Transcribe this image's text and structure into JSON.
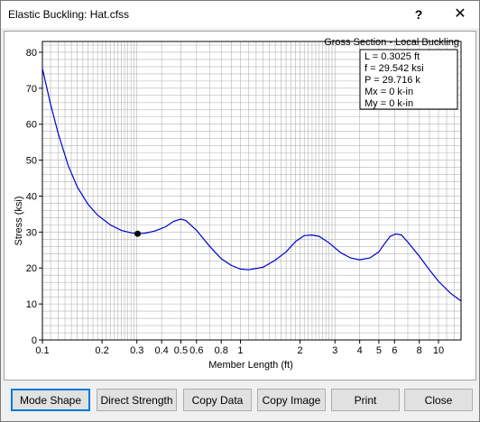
{
  "window": {
    "title": "Elastic Buckling: Hat.cfss",
    "help_label": "?",
    "close_label": "✕"
  },
  "plot": {
    "subtitle": "Gross Section - Local Buckling",
    "info_lines": [
      "L = 0.3025 ft",
      "f = 29.542 ksi",
      "P = 29.716 k",
      "Mx = 0 k-in",
      "My = 0 k-in"
    ]
  },
  "buttons": {
    "mode_shape": "Mode Shape",
    "direct_strength": "Direct Strength",
    "copy_data": "Copy Data",
    "copy_image": "Copy Image",
    "print": "Print",
    "close": "Close"
  },
  "colors": {
    "curve": "#0000cc",
    "marker": "#000000",
    "grid": "#b4b4b4",
    "focus_border": "#0078d7"
  },
  "chart_data": {
    "type": "line",
    "title": "",
    "xlabel": "Member Length (ft)",
    "ylabel": "Stress (ksi)",
    "xscale": "log",
    "xlim": [
      0.1,
      13
    ],
    "ylim": [
      0,
      83
    ],
    "x_ticks": [
      {
        "v": 0.1,
        "label": "0.1"
      },
      {
        "v": 0.2,
        "label": "0.2"
      },
      {
        "v": 0.3,
        "label": "0.3"
      },
      {
        "v": 0.4,
        "label": "0.4"
      },
      {
        "v": 0.5,
        "label": "0.5"
      },
      {
        "v": 0.6,
        "label": "0.6"
      },
      {
        "v": 0.8,
        "label": "0.8"
      },
      {
        "v": 1,
        "label": "1"
      },
      {
        "v": 2,
        "label": "2"
      },
      {
        "v": 3,
        "label": "3"
      },
      {
        "v": 4,
        "label": "4"
      },
      {
        "v": 5,
        "label": "5"
      },
      {
        "v": 6,
        "label": "6"
      },
      {
        "v": 8,
        "label": "8"
      },
      {
        "v": 10,
        "label": "10"
      }
    ],
    "y_ticks": [
      0,
      10,
      20,
      30,
      40,
      50,
      60,
      70,
      80
    ],
    "grid": true,
    "series": [
      {
        "x": [
          0.1,
          0.11,
          0.12,
          0.135,
          0.15,
          0.17,
          0.19,
          0.22,
          0.25,
          0.28,
          0.3025,
          0.33,
          0.37,
          0.42,
          0.46,
          0.5,
          0.53,
          0.6,
          0.7,
          0.8,
          0.9,
          1.0,
          1.1,
          1.3,
          1.5,
          1.7,
          1.9,
          2.1,
          2.3,
          2.5,
          2.8,
          3.2,
          3.6,
          4.0,
          4.5,
          5.0,
          5.3,
          5.7,
          6.1,
          6.5,
          7.0,
          8.0,
          9.0,
          10.0,
          11.5,
          13.0
        ],
        "y": [
          75.5,
          65.5,
          57.5,
          48.5,
          42.5,
          37.7,
          34.7,
          32.0,
          30.5,
          29.8,
          29.54,
          29.7,
          30.3,
          31.5,
          33.0,
          33.6,
          33.2,
          30.5,
          26.0,
          22.6,
          20.7,
          19.7,
          19.5,
          20.2,
          22.2,
          24.5,
          27.4,
          29.0,
          29.2,
          28.8,
          27.0,
          24.3,
          22.8,
          22.3,
          22.8,
          24.5,
          26.5,
          28.8,
          29.5,
          29.2,
          27.2,
          23.3,
          19.5,
          16.3,
          13.0,
          10.8
        ]
      }
    ],
    "marker": {
      "x": 0.3025,
      "y": 29.54
    }
  }
}
